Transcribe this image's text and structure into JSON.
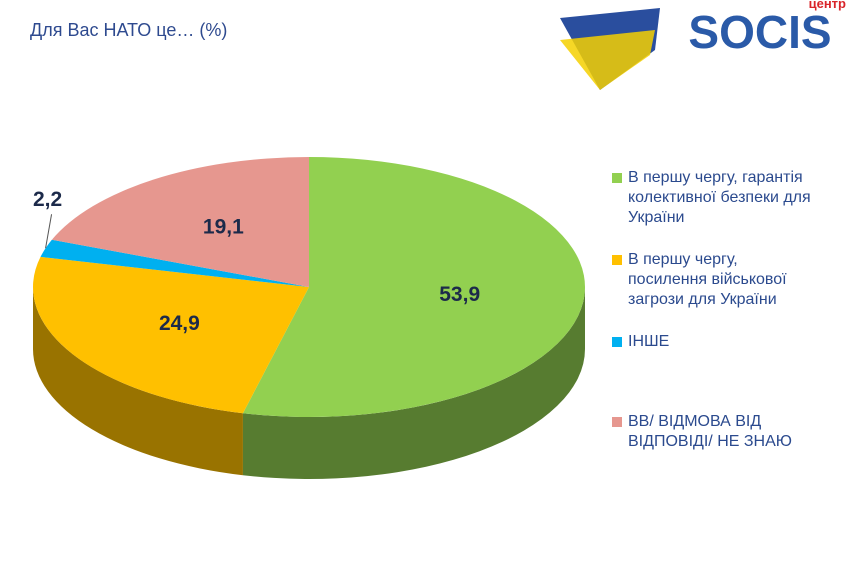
{
  "title": "Для Вас НАТО це… (%)",
  "logo": {
    "name": "SOCIS",
    "prefix": "центр"
  },
  "chart_data": {
    "type": "pie3d",
    "categories": [
      "В першу чергу, гарантія колективної безпеки для України",
      "В першу чергу, посилення військової загрози для України",
      "ІНШЕ",
      "ВВ/ ВІДМОВА ВІД ВІДПОВІДІ/ НЕ ЗНАЮ"
    ],
    "values": [
      53.9,
      24.9,
      2.2,
      19.1
    ],
    "value_labels": [
      "53,9",
      "24,9",
      "2,2",
      "19,1"
    ],
    "colors": [
      "#92d050",
      "#ffc000",
      "#00b0f0",
      "#e6978f"
    ],
    "legend": "right"
  }
}
